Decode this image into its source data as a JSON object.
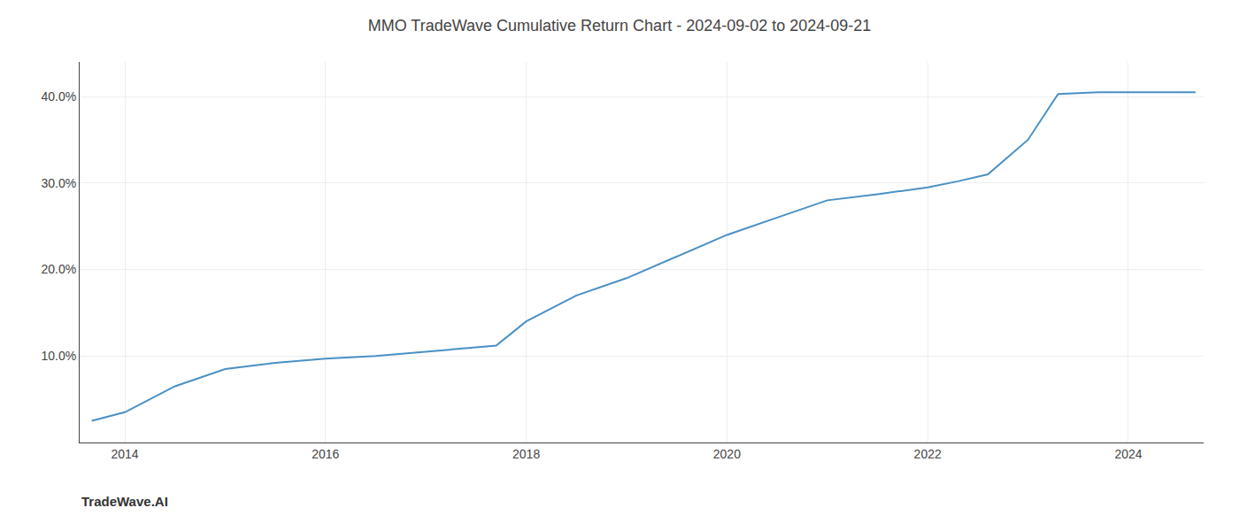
{
  "chart_data": {
    "type": "line",
    "title": "MMO TradeWave Cumulative Return Chart - 2024-09-02 to 2024-09-21",
    "annotations": [
      "TradeWave.AI"
    ],
    "x": [
      2013.67,
      2014.0,
      2014.5,
      2015.0,
      2015.5,
      2016.0,
      2016.5,
      2017.0,
      2017.3,
      2017.7,
      2018.0,
      2018.5,
      2019.0,
      2019.5,
      2020.0,
      2020.5,
      2021.0,
      2021.5,
      2022.0,
      2022.3,
      2022.6,
      2023.0,
      2023.3,
      2023.7,
      2024.0,
      2024.67
    ],
    "values": [
      2.5,
      3.5,
      6.5,
      8.5,
      9.2,
      9.7,
      10.0,
      10.5,
      10.8,
      11.2,
      14.0,
      17.0,
      19.0,
      21.5,
      24.0,
      26.0,
      28.0,
      28.7,
      29.5,
      30.2,
      31.0,
      35.0,
      40.3,
      40.5,
      40.5,
      40.5
    ],
    "color": "#4a90c4",
    "xlim": [
      2013.55,
      2024.75
    ],
    "xticks": [
      2014,
      2016,
      2018,
      2020,
      2022,
      2024
    ],
    "ylim": [
      0,
      44
    ],
    "yticks": [
      {
        "value": 10.0,
        "label": "10.0%"
      },
      {
        "value": 20.0,
        "label": "20.0%"
      },
      {
        "value": 30.0,
        "label": "30.0%"
      },
      {
        "value": 40.0,
        "label": "40.0%"
      }
    ],
    "grid": true
  }
}
